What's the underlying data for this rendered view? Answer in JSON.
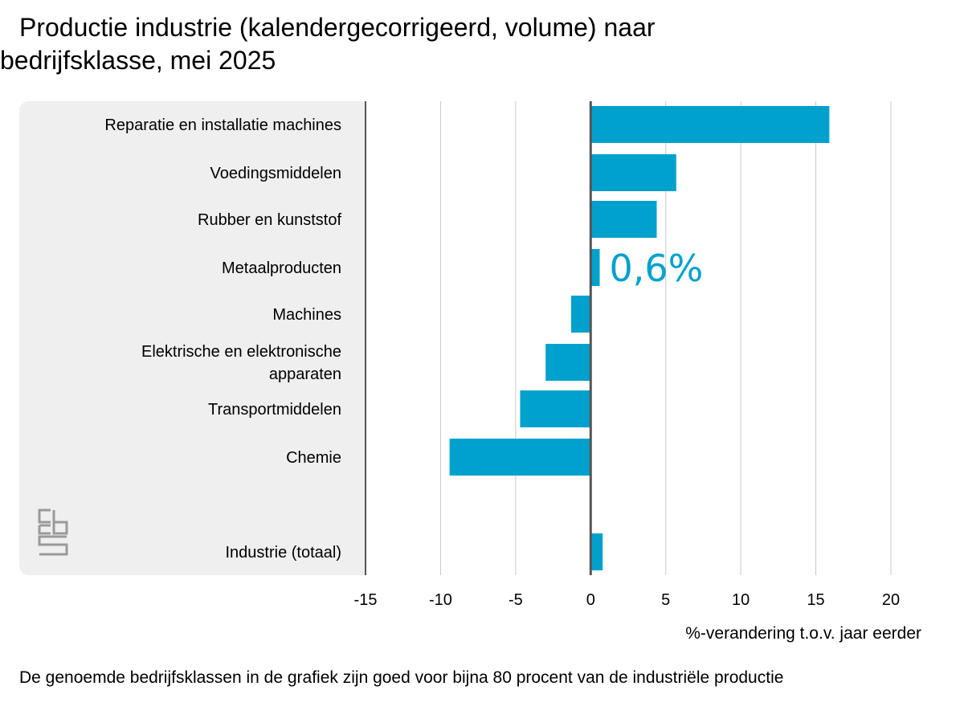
{
  "title": {
    "line1": "Productie industrie (kalendergecorrigeerd, volume) naar",
    "line2": "bedrijfsklasse, mei 2025"
  },
  "chart_data": {
    "type": "bar",
    "orientation": "horizontal",
    "categories": [
      [
        "Reparatie en installatie machines"
      ],
      [
        "Voedingsmiddelen"
      ],
      [
        "Rubber en kunststof"
      ],
      [
        "Metaalproducten"
      ],
      [
        "Machines"
      ],
      [
        "Elektrische en elektronische",
        "apparaten"
      ],
      [
        "Transportmiddelen"
      ],
      [
        "Chemie"
      ],
      [
        "Industrie (totaal)"
      ]
    ],
    "values": [
      15.9,
      5.7,
      4.4,
      0.6,
      -1.3,
      -3.0,
      -4.7,
      -9.4,
      0.8
    ],
    "highlight": {
      "index": 3,
      "label": "0,6%"
    },
    "xlim": [
      -15,
      20
    ],
    "xticks": [
      -15,
      -10,
      -5,
      0,
      5,
      10,
      15,
      20
    ],
    "xtick_labels": [
      "-15",
      "-10",
      "-5",
      "0",
      "5",
      "10",
      "15",
      "20"
    ],
    "xlabel": "%-verandering t.o.v. jaar eerder",
    "ylabel": "",
    "grid": true,
    "bar_color": "#00a1cd",
    "label_panel_color": "#efefef"
  },
  "footnote": "De genoemde bedrijfsklassen in de grafiek zijn goed voor bijna 80 procent van de industriële productie",
  "logo": {
    "icon": "cbs-logo-icon",
    "text": "cbs",
    "color": "#9a9a9a"
  }
}
